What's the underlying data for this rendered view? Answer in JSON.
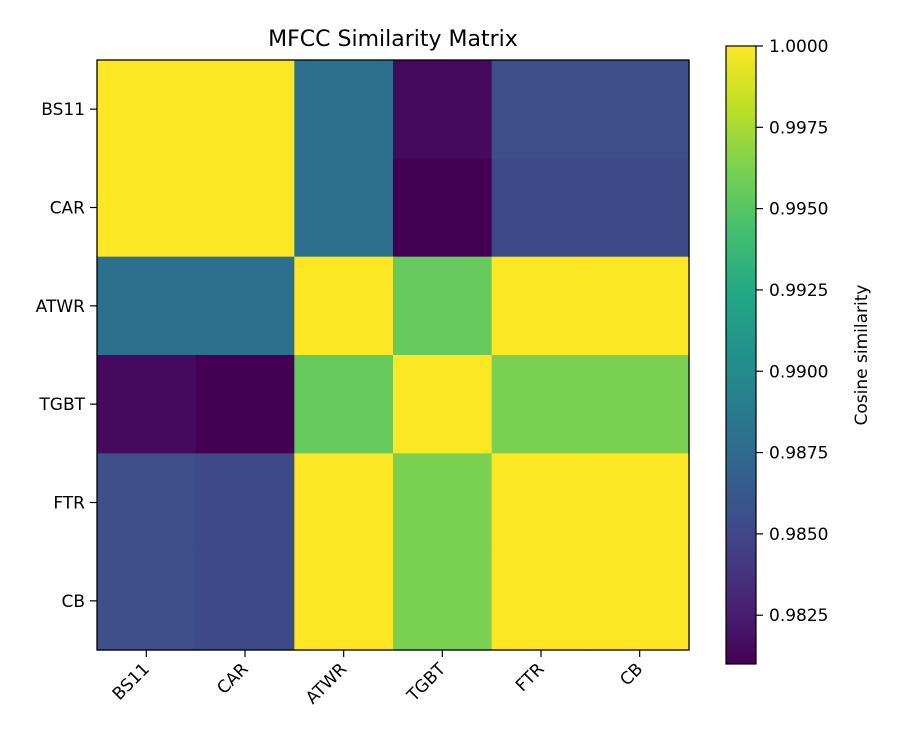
{
  "chart_data": {
    "type": "heatmap",
    "title": "MFCC Similarity Matrix",
    "rows": [
      "BS11",
      "CAR",
      "ATWR",
      "TGBT",
      "FTR",
      "CB"
    ],
    "cols": [
      "BS11",
      "CAR",
      "ATWR",
      "TGBT",
      "FTR",
      "CB"
    ],
    "values": [
      [
        1.0,
        1.0,
        0.988,
        0.9815,
        0.9855,
        0.9855
      ],
      [
        1.0,
        1.0,
        0.988,
        0.981,
        0.9852,
        0.9852
      ],
      [
        0.988,
        0.988,
        1.0,
        0.9955,
        1.0,
        1.0
      ],
      [
        0.9815,
        0.981,
        0.9955,
        1.0,
        0.9962,
        0.9962
      ],
      [
        0.9855,
        0.9852,
        1.0,
        0.9962,
        1.0,
        1.0
      ],
      [
        0.9855,
        0.9852,
        1.0,
        0.9962,
        1.0,
        1.0
      ]
    ],
    "colormap": "viridis",
    "colorbar": {
      "label": "Cosine similarity",
      "vmin": 0.981,
      "vmax": 1.0,
      "ticks": [
        "0.9825",
        "0.9850",
        "0.9875",
        "0.9900",
        "0.9925",
        "0.9950",
        "0.9975",
        "1.0000"
      ]
    },
    "grid": false
  }
}
